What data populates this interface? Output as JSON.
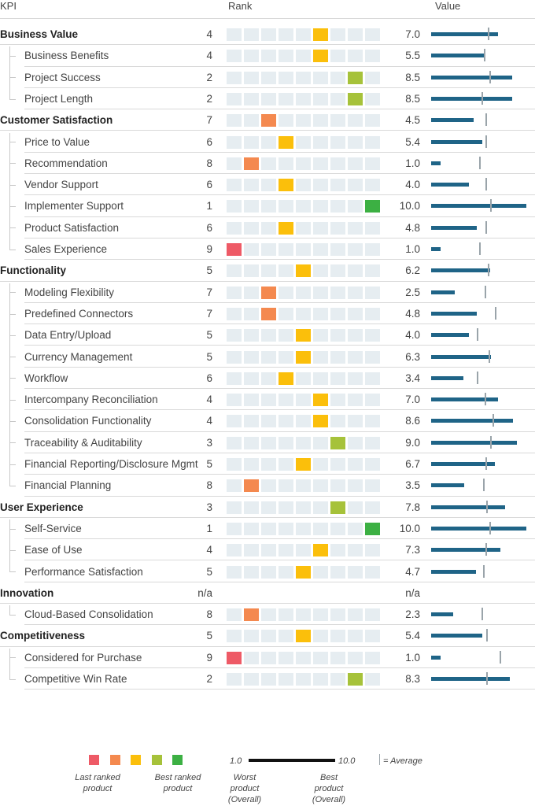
{
  "headers": {
    "kpi": "KPI",
    "rank": "Rank",
    "value": "Value"
  },
  "colors": {
    "rank_1": "#3cb043",
    "rank_2_3": "#a6c23a",
    "rank_4_6": "#fbbf0b",
    "rank_7_8": "#f4894f",
    "rank_9": "#ee5a66",
    "empty": "#e6edf1",
    "bar": "#1f6487",
    "avg": "#9aa4aa"
  },
  "chart_data": {
    "type": "table",
    "value_range": [
      1.0,
      10.0
    ],
    "rank_slots": 9,
    "rows": [
      {
        "kpi": "Business Value",
        "category": true,
        "rank": "4",
        "value": "7.0",
        "average": 6.0
      },
      {
        "kpi": "Business Benefits",
        "category": false,
        "rank": "4",
        "value": "5.5",
        "average": 5.6
      },
      {
        "kpi": "Project Success",
        "category": false,
        "rank": "2",
        "value": "8.5",
        "average": 6.2
      },
      {
        "kpi": "Project Length",
        "category": false,
        "rank": "2",
        "value": "8.5",
        "average": 5.4
      },
      {
        "kpi": "Customer Satisfaction",
        "category": true,
        "rank": "7",
        "value": "4.5",
        "average": 5.8
      },
      {
        "kpi": "Price to Value",
        "category": false,
        "rank": "6",
        "value": "5.4",
        "average": 5.8
      },
      {
        "kpi": "Recommendation",
        "category": false,
        "rank": "8",
        "value": "1.0",
        "average": 5.1
      },
      {
        "kpi": "Vendor Support",
        "category": false,
        "rank": "6",
        "value": "4.0",
        "average": 5.8
      },
      {
        "kpi": "Implementer Support",
        "category": false,
        "rank": "1",
        "value": "10.0",
        "average": 6.3
      },
      {
        "kpi": "Product Satisfaction",
        "category": false,
        "rank": "6",
        "value": "4.8",
        "average": 5.8
      },
      {
        "kpi": "Sales Experience",
        "category": false,
        "rank": "9",
        "value": "1.0",
        "average": 5.1
      },
      {
        "kpi": "Functionality",
        "category": true,
        "rank": "5",
        "value": "6.2",
        "average": 6.0
      },
      {
        "kpi": "Modeling Flexibility",
        "category": false,
        "rank": "7",
        "value": "2.5",
        "average": 5.7
      },
      {
        "kpi": "Predefined Connectors",
        "category": false,
        "rank": "7",
        "value": "4.8",
        "average": 6.8
      },
      {
        "kpi": "Data Entry/Upload",
        "category": false,
        "rank": "5",
        "value": "4.0",
        "average": 4.9
      },
      {
        "kpi": "Currency Management",
        "category": false,
        "rank": "5",
        "value": "6.3",
        "average": 6.1
      },
      {
        "kpi": "Workflow",
        "category": false,
        "rank": "6",
        "value": "3.4",
        "average": 4.9
      },
      {
        "kpi": "Intercompany Reconciliation",
        "category": false,
        "rank": "4",
        "value": "7.0",
        "average": 5.7
      },
      {
        "kpi": "Consolidation Functionality",
        "category": false,
        "rank": "4",
        "value": "8.6",
        "average": 6.5
      },
      {
        "kpi": "Traceability & Auditability",
        "category": false,
        "rank": "3",
        "value": "9.0",
        "average": 6.3
      },
      {
        "kpi": "Financial Reporting/Disclosure Mgmt",
        "category": false,
        "rank": "5",
        "value": "6.7",
        "average": 5.8
      },
      {
        "kpi": "Financial Planning",
        "category": false,
        "rank": "8",
        "value": "3.5",
        "average": 5.5
      },
      {
        "kpi": "User Experience",
        "category": true,
        "rank": "3",
        "value": "7.8",
        "average": 5.9
      },
      {
        "kpi": "Self-Service",
        "category": false,
        "rank": "1",
        "value": "10.0",
        "average": 6.2
      },
      {
        "kpi": "Ease of Use",
        "category": false,
        "rank": "4",
        "value": "7.3",
        "average": 5.8
      },
      {
        "kpi": "Performance Satisfaction",
        "category": false,
        "rank": "5",
        "value": "4.7",
        "average": 5.5
      },
      {
        "kpi": "Innovation",
        "category": true,
        "rank": "n/a",
        "value": "n/a",
        "average": null
      },
      {
        "kpi": "Cloud-Based Consolidation",
        "category": false,
        "rank": "8",
        "value": "2.3",
        "average": 5.4
      },
      {
        "kpi": "Competitiveness",
        "category": true,
        "rank": "5",
        "value": "5.4",
        "average": 5.9
      },
      {
        "kpi": "Considered for Purchase",
        "category": false,
        "rank": "9",
        "value": "1.0",
        "average": 7.3
      },
      {
        "kpi": "Competitive Win Rate",
        "category": false,
        "rank": "2",
        "value": "8.3",
        "average": 5.9
      }
    ]
  },
  "legend": {
    "last_ranked": "Last ranked product",
    "best_ranked": "Best ranked product",
    "scale_min": "1.0",
    "scale_max": "10.0",
    "worst_label": "Worst product (Overall)",
    "best_label": "Best product (Overall)",
    "average_label": "= Average"
  }
}
